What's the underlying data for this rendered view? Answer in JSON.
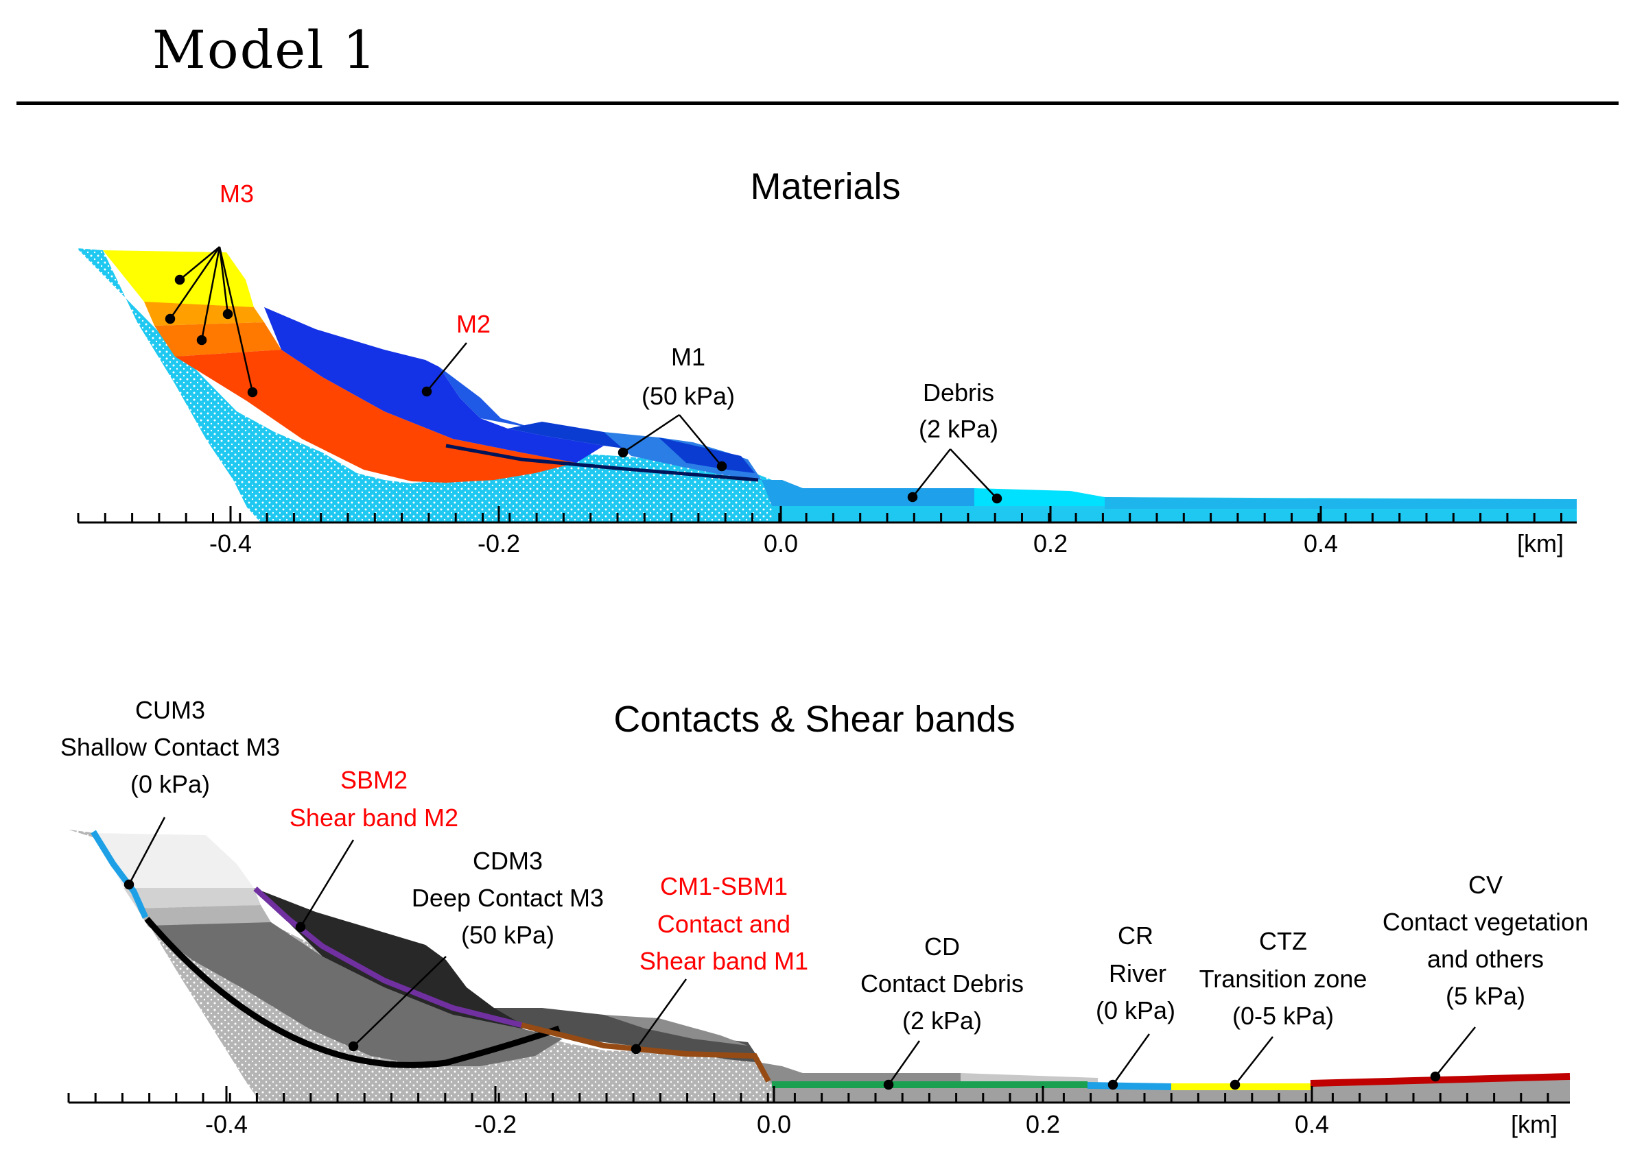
{
  "page": {
    "title": "Model 1"
  },
  "materials": {
    "heading": "Materials",
    "axis_unit": "[km]",
    "ticks": [
      "-0.4",
      "-0.2",
      "0.0",
      "0.2",
      "0.4"
    ],
    "labels": {
      "m3": "M3",
      "m2": "M2",
      "m1_name": "M1",
      "m1_strength": "(50 kPa)",
      "debris_name": "Debris",
      "debris_strength": "(2 kPa)"
    },
    "colors": {
      "m3_top": "#ffff00",
      "m3_mid": "#ffa000",
      "m3_low": "#ff7800",
      "m3_main": "#ff4500",
      "m2": "#1432e6",
      "m1_dark": "#0a3cd2",
      "m1_light": "#2a7ee6",
      "debris_dark": "#1ea0ea",
      "debris_light": "#00e0ff",
      "bedrock": "#1ec8f0"
    }
  },
  "contacts": {
    "heading": "Contacts & Shear bands",
    "axis_unit": "[km]",
    "ticks": [
      "-0.4",
      "-0.2",
      "0.0",
      "0.2",
      "0.4"
    ],
    "labels": {
      "cum3": [
        "CUM3",
        "Shallow Contact M3",
        "(0 kPa)"
      ],
      "sbm2": [
        "SBM2",
        "Shear band M2"
      ],
      "cdm3": [
        "CDM3",
        "Deep Contact M3",
        "(50 kPa)"
      ],
      "cm1": [
        "CM1-SBM1",
        "Contact and",
        "Shear band M1"
      ],
      "cd": [
        "CD",
        "Contact Debris",
        "(2 kPa)"
      ],
      "cr": [
        "CR",
        "River",
        "(0 kPa)"
      ],
      "ctz": [
        "CTZ",
        "Transition zone",
        "(0-5 kPa)"
      ],
      "cv": [
        "CV",
        "Contact vegetation",
        "and others",
        "(5 kPa)"
      ]
    },
    "colors": {
      "cum3": "#1ea0e6",
      "sbm2": "#7030a0",
      "cdm3": "#000000",
      "cm1": "#964b14",
      "cd": "#1aa050",
      "cr": "#1ea0e6",
      "ctz": "#ffff00",
      "cv": "#c00000",
      "red_text": "#ff0000"
    }
  }
}
